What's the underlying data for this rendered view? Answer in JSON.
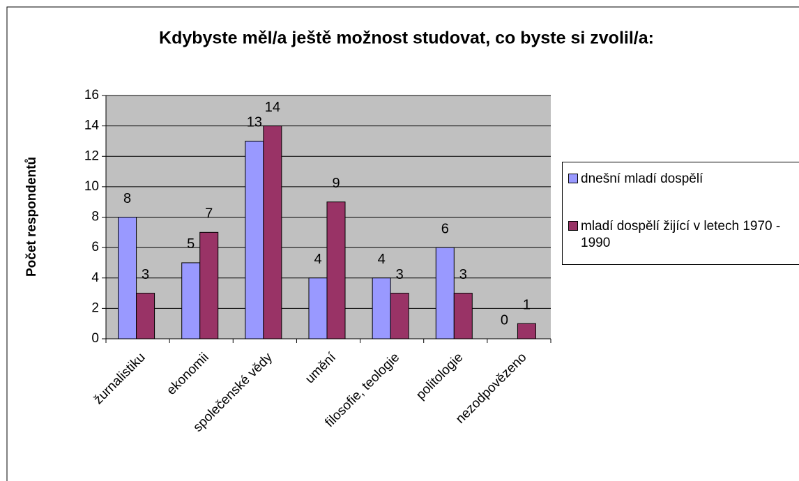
{
  "chart_data": {
    "type": "bar",
    "title": "Kdybyste měl/a ještě možnost studovat, co byste si zvolil/a:",
    "y_label": "Počet respondentů",
    "categories": [
      "žurnalistiku",
      "ekonomii",
      "společenské vědy",
      "umění",
      "filosofie, teologie",
      "politologie",
      "nezodpovězeno"
    ],
    "series": [
      {
        "name": "dnešní mladí dospělí",
        "color": "#9999ff",
        "values": [
          8,
          5,
          13,
          4,
          4,
          6,
          0
        ]
      },
      {
        "name": "mladí dospělí žijící v letech 1970 - 1990",
        "color": "#993366",
        "values": [
          3,
          7,
          14,
          9,
          3,
          3,
          1
        ]
      }
    ],
    "ylim": [
      0,
      16
    ],
    "yticks": [
      0,
      2,
      4,
      6,
      8,
      10,
      12,
      14,
      16
    ],
    "grid": true
  }
}
